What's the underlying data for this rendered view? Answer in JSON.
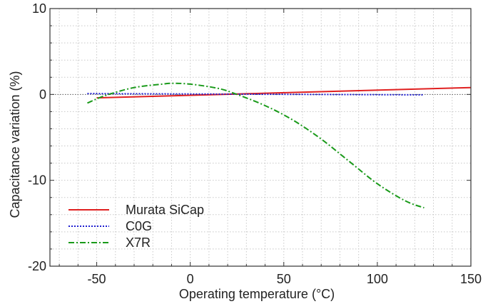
{
  "chart_data": {
    "type": "line",
    "title": "",
    "xlabel": "Operating temperature (°C)",
    "ylabel": "Capacitance variation (%)",
    "xlim": [
      -75,
      150
    ],
    "ylim": [
      -20,
      10
    ],
    "x_ticks": [
      -50,
      0,
      50,
      100,
      150
    ],
    "y_ticks": [
      -20,
      -10,
      0,
      10
    ],
    "x_tick_labels": [
      "-50",
      "0",
      "50",
      "100",
      "150"
    ],
    "y_tick_labels": [
      "-20",
      "-10",
      "0",
      "10"
    ],
    "grid": true,
    "legend_position": "bottom-left",
    "series": [
      {
        "name": "Murata SiCap",
        "color": "#e02020",
        "style": "solid",
        "x": [
          -50,
          150
        ],
        "y": [
          -0.4,
          0.8
        ]
      },
      {
        "name": "C0G",
        "color": "#2020d0",
        "style": "dotted",
        "x": [
          -55,
          125
        ],
        "y": [
          0.1,
          -0.05
        ]
      },
      {
        "name": "X7R",
        "color": "#1a9a1a",
        "style": "dashdot",
        "x": [
          -55,
          -45,
          -30,
          -15,
          -10,
          0,
          15,
          25,
          40,
          55,
          70,
          85,
          100,
          115,
          125
        ],
        "y": [
          -1.0,
          -0.1,
          0.8,
          1.2,
          1.3,
          1.2,
          0.7,
          0.0,
          -1.3,
          -3.0,
          -5.2,
          -7.8,
          -10.4,
          -12.4,
          -13.2
        ]
      }
    ]
  }
}
